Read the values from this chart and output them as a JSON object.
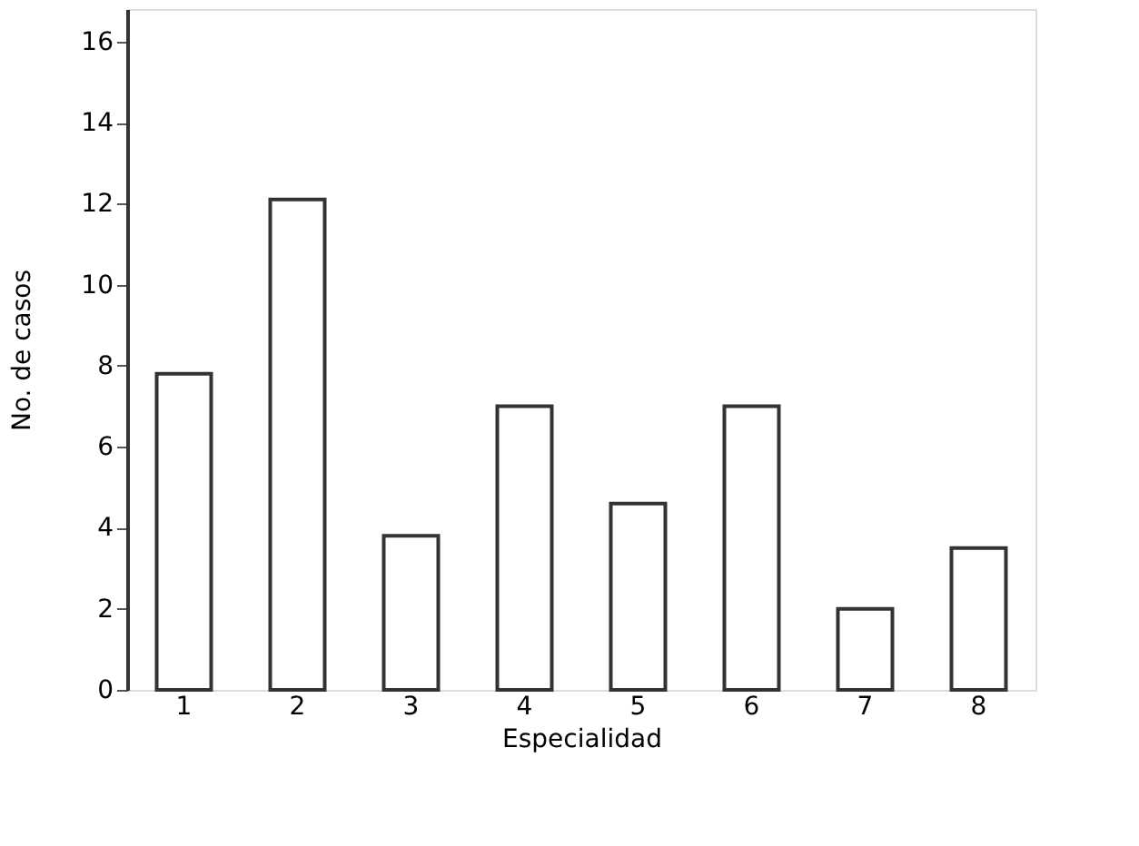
{
  "chart_data": {
    "type": "bar",
    "xlabel": "Especialidad",
    "ylabel": "No. de casos",
    "categories": [
      "1",
      "2",
      "3",
      "4",
      "5",
      "6",
      "7",
      "8"
    ],
    "values": [
      7.8,
      12.1,
      3.8,
      7.0,
      4.6,
      7.0,
      2.0,
      3.5
    ],
    "color": "#ffffff",
    "ylim": [
      0,
      16.8
    ],
    "yticks": [
      0,
      2,
      4,
      6,
      8,
      10,
      12,
      14,
      16
    ],
    "grid": false
  }
}
